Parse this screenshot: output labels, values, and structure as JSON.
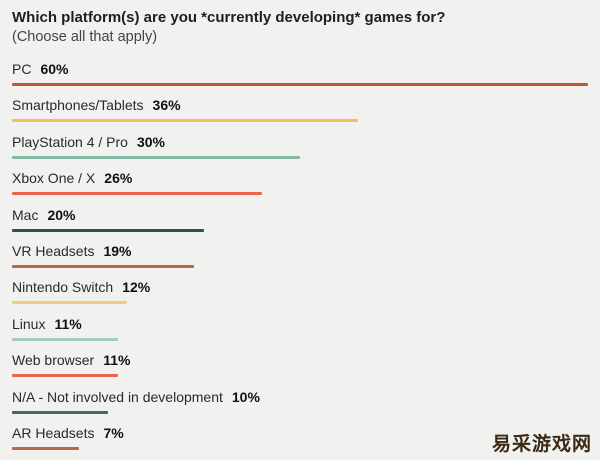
{
  "chart_data": {
    "type": "bar",
    "orientation": "horizontal",
    "title": "Which platform(s) are you *currently developing* games for?",
    "subtitle": "(Choose all that apply)",
    "xlim": [
      0,
      60
    ],
    "grid": false,
    "categories": [
      "PC",
      "Smartphones/Tablets",
      "PlayStation 4 / Pro",
      "Xbox One / X",
      "Mac",
      "VR Headsets",
      "Nintendo Switch",
      "Linux",
      "Web browser",
      "N/A - Not involved in development",
      "AR Headsets"
    ],
    "values": [
      60,
      36,
      30,
      26,
      20,
      19,
      12,
      11,
      11,
      10,
      7
    ],
    "value_labels": [
      "60%",
      "36%",
      "30%",
      "26%",
      "20%",
      "19%",
      "12%",
      "11%",
      "11%",
      "10%",
      "7%"
    ],
    "colors": [
      "#c0583a",
      "#f0c15a",
      "#84b8a3",
      "#e8674a",
      "#1f5a47",
      "#b56a50",
      "#f2cc78",
      "#a9cbbf",
      "#e8674a",
      "#4a6468",
      "#b56a50"
    ]
  },
  "watermark": "易采游戏网"
}
